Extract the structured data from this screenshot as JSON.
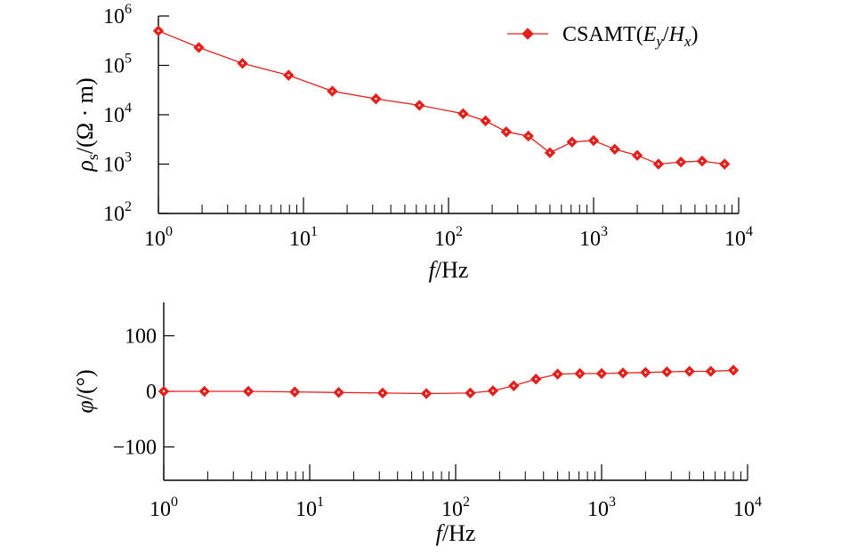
{
  "chart_data": [
    {
      "type": "line",
      "xscale": "log",
      "yscale": "log",
      "xlim": [
        1,
        10000
      ],
      "ylim": [
        100,
        1000000
      ],
      "xticks": [
        1,
        10,
        100,
        1000,
        10000
      ],
      "yticks": [
        100,
        1000,
        10000,
        100000,
        1000000
      ],
      "xtick_labels": [
        {
          "base": "10",
          "exp": "0"
        },
        {
          "base": "10",
          "exp": "1"
        },
        {
          "base": "10",
          "exp": "2"
        },
        {
          "base": "10",
          "exp": "3"
        },
        {
          "base": "10",
          "exp": "4"
        }
      ],
      "ytick_labels": [
        {
          "base": "10",
          "exp": "2"
        },
        {
          "base": "10",
          "exp": "3"
        },
        {
          "base": "10",
          "exp": "4"
        },
        {
          "base": "10",
          "exp": "5"
        },
        {
          "base": "10",
          "exp": "6"
        }
      ],
      "xlabel": {
        "var": "f",
        "unit": "/Hz"
      },
      "ylabel": {
        "var": "ρ",
        "sub": "s",
        "unit": "/(Ω · m)"
      },
      "grid": false,
      "legend": {
        "position": "top-right",
        "prefix": "CSAMT(",
        "e": "E",
        "e_sub": "y",
        "slash": "/",
        "h": "H",
        "h_sub": "x",
        "suffix": ")"
      },
      "series": [
        {
          "color": "#e3201b",
          "marker": "diamond",
          "x": [
            1,
            1.9,
            3.8,
            7.9,
            15.8,
            31.6,
            63,
            126,
            180,
            250,
            355,
            500,
            710,
            1000,
            1400,
            2000,
            2800,
            4000,
            5600,
            8000
          ],
          "y": [
            500000,
            230000,
            110000,
            63000,
            30000,
            21000,
            15500,
            10500,
            7500,
            4500,
            3700,
            1700,
            2800,
            3000,
            2000,
            1500,
            1000,
            1100,
            1150,
            1000
          ]
        }
      ]
    },
    {
      "type": "line",
      "xscale": "log",
      "yscale": "linear",
      "xlim": [
        1,
        10000
      ],
      "ylim": [
        -160,
        160
      ],
      "xticks": [
        1,
        10,
        100,
        1000,
        10000
      ],
      "yticks": [
        100,
        0,
        -100
      ],
      "xtick_labels": [
        {
          "base": "10",
          "exp": "0"
        },
        {
          "base": "10",
          "exp": "1"
        },
        {
          "base": "10",
          "exp": "2"
        },
        {
          "base": "10",
          "exp": "3"
        },
        {
          "base": "10",
          "exp": "4"
        }
      ],
      "ytick_labels": [
        "100",
        "0",
        "−100"
      ],
      "xlabel": {
        "var": "f",
        "unit": "/Hz"
      },
      "ylabel": {
        "var": "φ",
        "unit": "/(°)"
      },
      "grid": false,
      "series": [
        {
          "color": "#e3201b",
          "marker": "diamond",
          "x": [
            1,
            1.9,
            3.8,
            7.9,
            15.8,
            31.6,
            63,
            126,
            180,
            250,
            355,
            500,
            710,
            1000,
            1400,
            2000,
            2800,
            4000,
            5600,
            8000
          ],
          "y": [
            0,
            0,
            0,
            -1,
            -2,
            -3,
            -4,
            -3,
            1,
            10,
            22,
            31,
            32,
            32,
            33,
            34,
            35,
            36,
            36,
            38
          ]
        }
      ]
    }
  ]
}
